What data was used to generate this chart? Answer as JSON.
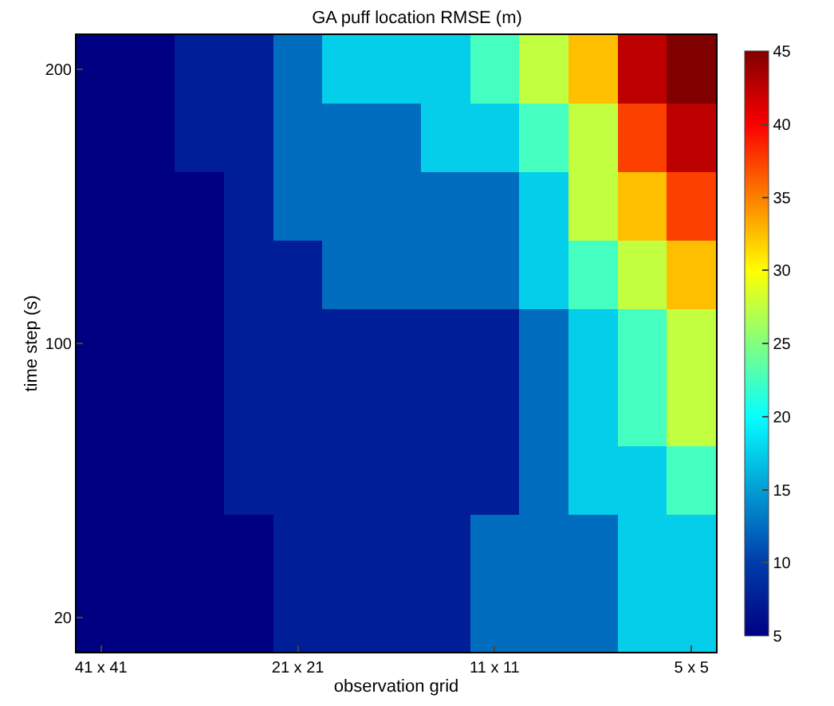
{
  "chart_data": {
    "type": "heatmap",
    "title": "GA puff location RMSE (m)",
    "xlabel": "observation grid",
    "ylabel": "time step (s)",
    "categories": [
      "41 x 41",
      null,
      null,
      null,
      "21 x 21",
      null,
      null,
      null,
      "11 x 11",
      null,
      null,
      null,
      "5 x 5"
    ],
    "y_categories": [
      "200",
      null,
      null,
      null,
      "100",
      null,
      null,
      null,
      "20"
    ],
    "cells": [
      [
        5,
        5,
        7.5,
        7.5,
        12.5,
        17.5,
        17.5,
        17.5,
        22.5,
        27.5,
        32.5,
        42.5,
        45
      ],
      [
        5,
        5,
        7.5,
        7.5,
        12.5,
        12.5,
        12.5,
        17.5,
        17.5,
        22.5,
        27.5,
        37.5,
        42.5
      ],
      [
        5,
        5,
        5,
        7.5,
        12.5,
        12.5,
        12.5,
        12.5,
        12.5,
        17.5,
        27.5,
        32.5,
        37.5
      ],
      [
        5,
        5,
        5,
        7.5,
        7.5,
        12.5,
        12.5,
        12.5,
        12.5,
        17.5,
        22.5,
        27.5,
        32.5
      ],
      [
        5,
        5,
        5,
        7.5,
        7.5,
        7.5,
        7.5,
        7.5,
        7.5,
        12.5,
        17.5,
        22.5,
        27.5
      ],
      [
        5,
        5,
        5,
        7.5,
        7.5,
        7.5,
        7.5,
        7.5,
        7.5,
        12.5,
        17.5,
        22.5,
        27.5
      ],
      [
        5,
        5,
        5,
        7.5,
        7.5,
        7.5,
        7.5,
        7.5,
        7.5,
        12.5,
        17.5,
        17.5,
        22.5
      ],
      [
        5,
        5,
        5,
        5,
        7.5,
        7.5,
        7.5,
        7.5,
        12.5,
        12.5,
        12.5,
        17.5,
        17.5
      ],
      [
        5,
        5,
        5,
        5,
        7.5,
        7.5,
        7.5,
        7.5,
        12.5,
        12.5,
        12.5,
        17.5,
        17.5
      ]
    ],
    "clim": [
      5,
      45
    ],
    "cticks": [
      5,
      10,
      15,
      20,
      25,
      30,
      35,
      40,
      45
    ]
  }
}
